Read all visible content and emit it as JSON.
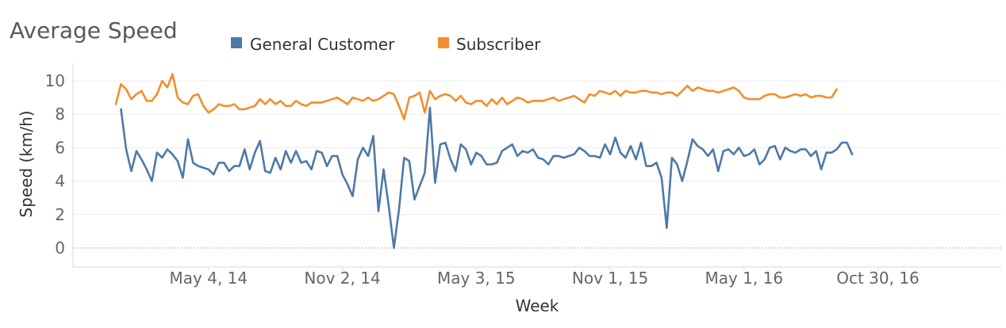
{
  "colors": {
    "general": "#4e79a7",
    "subscriber": "#f28e2b",
    "grid": "#ececec",
    "zero_line": "#b3b3b3",
    "axis": "#d9d9d9"
  },
  "chart_data": {
    "type": "line",
    "title": "Average Speed",
    "xlabel": "Week",
    "ylabel": "Speed (km/h)",
    "ylim": [
      0,
      11
    ],
    "y_ticks": [
      0,
      2,
      4,
      6,
      8,
      10
    ],
    "x_range_weeks": [
      0,
      163
    ],
    "x_ticks": [
      {
        "label": "May 4, 14",
        "week": 18
      },
      {
        "label": "Nov 2, 14",
        "week": 44
      },
      {
        "label": "May 3, 15",
        "week": 70
      },
      {
        "label": "Nov 1, 15",
        "week": 96
      },
      {
        "label": "May 1, 16",
        "week": 122
      },
      {
        "label": "Oct 30, 16",
        "week": 148
      }
    ],
    "grid": true,
    "legend": {
      "position": "top",
      "entries": [
        {
          "name": "General Customer",
          "color": "#4e79a7"
        },
        {
          "name": "Subscriber",
          "color": "#f28e2b"
        }
      ]
    },
    "series": [
      {
        "name": "General Customer",
        "color": "#4e79a7",
        "start_week": 1,
        "values": [
          8.3,
          5.9,
          4.6,
          5.8,
          5.3,
          4.7,
          4.0,
          5.7,
          5.4,
          5.9,
          5.6,
          5.2,
          4.2,
          6.5,
          5.1,
          4.9,
          4.8,
          4.7,
          4.4,
          5.1,
          5.1,
          4.6,
          4.9,
          4.9,
          5.9,
          4.7,
          5.7,
          6.4,
          4.6,
          4.5,
          5.4,
          4.7,
          5.8,
          5.1,
          5.8,
          5.1,
          5.2,
          4.7,
          5.8,
          5.7,
          4.9,
          5.5,
          5.5,
          4.4,
          3.8,
          3.1,
          5.3,
          6.0,
          5.5,
          6.7,
          2.2,
          4.7,
          2.5,
          0.0,
          2.3,
          5.4,
          5.2,
          2.9,
          3.7,
          4.5,
          8.4,
          3.9,
          6.2,
          6.3,
          5.3,
          4.6,
          6.2,
          5.9,
          5.0,
          5.7,
          5.5,
          5.0,
          5.0,
          5.1,
          5.8,
          6.0,
          6.2,
          5.5,
          5.8,
          5.7,
          5.9,
          5.4,
          5.3,
          5.0,
          5.5,
          5.5,
          5.4,
          5.5,
          5.6,
          6.0,
          5.8,
          5.5,
          5.5,
          5.4,
          6.2,
          5.6,
          6.6,
          5.7,
          5.4,
          6.1,
          5.3,
          6.3,
          4.9,
          4.9,
          5.1,
          4.2,
          1.2,
          5.4,
          5.0,
          4.0,
          5.2,
          6.5,
          6.1,
          5.9,
          5.5,
          5.9,
          4.6,
          5.8,
          5.9,
          5.6,
          6.0,
          5.5,
          5.6,
          5.9,
          5.0,
          5.3,
          6.0,
          6.1,
          5.3,
          6.0,
          5.8,
          5.7,
          5.9,
          5.9,
          5.5,
          5.8,
          4.7,
          5.7,
          5.7,
          5.9,
          6.3,
          6.3,
          5.6
        ]
      },
      {
        "name": "Subscriber",
        "color": "#f28e2b",
        "start_week": 0,
        "values": [
          8.6,
          9.8,
          9.5,
          8.9,
          9.2,
          9.4,
          8.8,
          8.8,
          9.2,
          10.0,
          9.6,
          10.4,
          9.0,
          8.7,
          8.6,
          9.1,
          9.2,
          8.5,
          8.1,
          8.3,
          8.6,
          8.5,
          8.5,
          8.6,
          8.3,
          8.3,
          8.4,
          8.5,
          8.9,
          8.6,
          8.9,
          8.6,
          8.8,
          8.5,
          8.5,
          8.8,
          8.6,
          8.5,
          8.7,
          8.7,
          8.7,
          8.8,
          8.9,
          9.0,
          8.8,
          8.6,
          9.0,
          8.9,
          8.8,
          9.0,
          8.8,
          8.9,
          9.1,
          9.3,
          9.2,
          8.5,
          7.7,
          9.0,
          9.1,
          9.3,
          8.1,
          9.4,
          8.9,
          9.1,
          9.2,
          9.1,
          8.8,
          9.1,
          8.7,
          8.6,
          8.8,
          8.8,
          8.5,
          8.9,
          8.6,
          9.0,
          8.6,
          8.8,
          9.0,
          8.9,
          8.7,
          8.8,
          8.8,
          8.8,
          8.9,
          9.0,
          8.8,
          8.9,
          9.0,
          9.1,
          8.9,
          8.7,
          9.2,
          9.1,
          9.4,
          9.3,
          9.2,
          9.4,
          9.1,
          9.4,
          9.3,
          9.3,
          9.4,
          9.4,
          9.3,
          9.3,
          9.2,
          9.3,
          9.3,
          9.1,
          9.4,
          9.7,
          9.4,
          9.6,
          9.5,
          9.4,
          9.4,
          9.3,
          9.4,
          9.5,
          9.6,
          9.4,
          9.0,
          8.9,
          8.9,
          8.9,
          9.1,
          9.2,
          9.2,
          9.0,
          9.0,
          9.1,
          9.2,
          9.1,
          9.2,
          9.0,
          9.1,
          9.1,
          9.0,
          9.0,
          9.5
        ]
      }
    ]
  }
}
